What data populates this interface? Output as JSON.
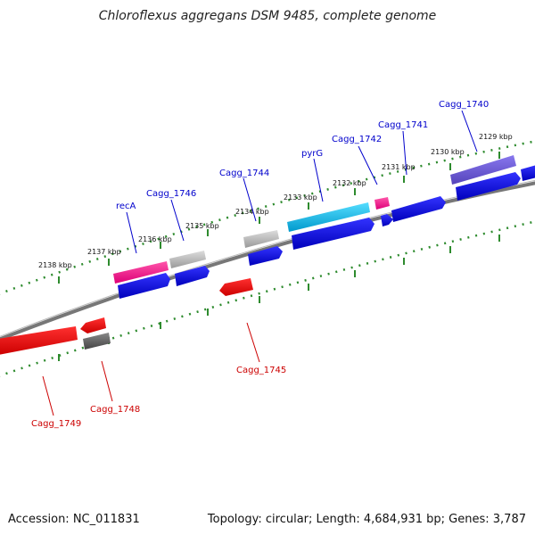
{
  "title": "Chloroflexus aggregans DSM 9485, complete genome",
  "footer": {
    "accession": "Accession: NC_011831",
    "topology": "Topology: circular; Length: 4,684,931 bp; Genes: 3,787"
  },
  "ticks": [
    "2138 kbp",
    "2137 kbp",
    "2136 kbp",
    "2135 kbp",
    "2134 kbp",
    "2133 kbp",
    "2132 kbp",
    "2131 kbp",
    "2130 kbp",
    "2129 kbp"
  ],
  "genes": {
    "recA": "recA",
    "cagg1746": "Cagg_1746",
    "cagg1744": "Cagg_1744",
    "pyrG": "pyrG",
    "cagg1742": "Cagg_1742",
    "cagg1741": "Cagg_1741",
    "cagg1740": "Cagg_1740",
    "cagg1745": "Cagg_1745",
    "cagg1748": "Cagg_1748",
    "cagg1749": "Cagg_1749"
  },
  "colors": {
    "backbone": "#808080",
    "tick_dots": "#2e8b2e",
    "cds_forward": "#0000ee",
    "cds_reverse": "#ee0000",
    "gene_magenta": "#ee1188",
    "gene_gray": "#aaaaaa",
    "gene_cyan": "#11aadd",
    "gene_purple": "#6655cc",
    "gene_darkgray": "#555555"
  }
}
